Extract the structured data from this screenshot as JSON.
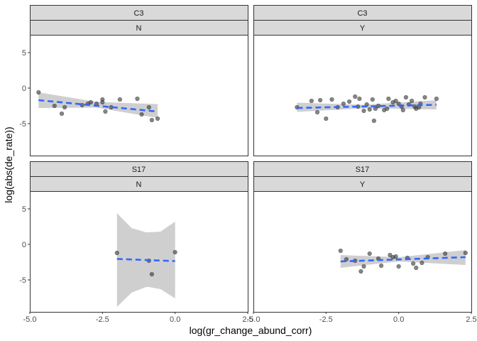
{
  "chart_data": {
    "type": "scatter",
    "xlabel": "log(gr_change_abund_corr)",
    "ylabel": "log(abs(de_rate))",
    "xlim": [
      -5.0,
      2.5
    ],
    "ylim": [
      -9.5,
      7.5
    ],
    "x_ticks": [
      -5.0,
      -2.5,
      0.0,
      2.5
    ],
    "x_tick_labels": [
      "-5.0",
      "-2.5",
      "0.0",
      "2.5"
    ],
    "y_ticks": [
      -5,
      0,
      5
    ],
    "y_tick_labels": [
      "-5",
      "0",
      "5"
    ],
    "grid": false,
    "colors": {
      "points": "#333333",
      "fit": "#3366ff",
      "band": "#bfbfbf",
      "strip": "#d9d9d9",
      "border": "#333333"
    },
    "panels": [
      {
        "row": 0,
        "col": 0,
        "strips": [
          "C3",
          "N"
        ],
        "points": [
          [
            -4.7,
            -0.6
          ],
          [
            -4.15,
            -2.5
          ],
          [
            -3.9,
            -3.6
          ],
          [
            -3.8,
            -2.7
          ],
          [
            -3.2,
            -2.4
          ],
          [
            -3.0,
            -2.2
          ],
          [
            -2.9,
            -2.0
          ],
          [
            -2.7,
            -2.2
          ],
          [
            -2.5,
            -2.0
          ],
          [
            -2.5,
            -1.6
          ],
          [
            -2.4,
            -3.3
          ],
          [
            -2.2,
            -2.7
          ],
          [
            -1.9,
            -1.6
          ],
          [
            -1.3,
            -1.5
          ],
          [
            -1.15,
            -3.7
          ],
          [
            -0.9,
            -2.7
          ],
          [
            -0.8,
            -4.5
          ],
          [
            -0.6,
            -4.3
          ]
        ],
        "fit": {
          "x": [
            -4.7,
            -0.6
          ],
          "y": [
            -1.7,
            -3.3
          ]
        },
        "band": {
          "x": [
            -4.7,
            -2.7,
            -0.6
          ],
          "lower": [
            -2.8,
            -2.75,
            -4.2
          ],
          "upper": [
            -0.6,
            -1.95,
            -2.25
          ]
        }
      },
      {
        "row": 0,
        "col": 1,
        "strips": [
          "C3",
          "Y"
        ],
        "points": [
          [
            -3.5,
            -2.7
          ],
          [
            -3.0,
            -1.8
          ],
          [
            -2.8,
            -3.4
          ],
          [
            -2.7,
            -1.7
          ],
          [
            -2.5,
            -4.3
          ],
          [
            -2.3,
            -1.6
          ],
          [
            -2.1,
            -2.7
          ],
          [
            -1.9,
            -2.2
          ],
          [
            -1.7,
            -1.9
          ],
          [
            -1.5,
            -1.2
          ],
          [
            -1.4,
            -2.6
          ],
          [
            -1.35,
            -1.5
          ],
          [
            -1.2,
            -3.2
          ],
          [
            -1.1,
            -2.3
          ],
          [
            -1.0,
            -3.0
          ],
          [
            -0.9,
            -1.6
          ],
          [
            -0.85,
            -4.6
          ],
          [
            -0.8,
            -2.9
          ],
          [
            -0.7,
            -2.5
          ],
          [
            -0.5,
            -3.1
          ],
          [
            -0.4,
            -2.9
          ],
          [
            -0.35,
            -1.5
          ],
          [
            -0.2,
            -2.0
          ],
          [
            -0.1,
            -1.8
          ],
          [
            0.0,
            -2.2
          ],
          [
            0.1,
            -2.6
          ],
          [
            0.15,
            -3.1
          ],
          [
            0.25,
            -1.3
          ],
          [
            0.35,
            -2.3
          ],
          [
            0.45,
            -1.8
          ],
          [
            0.55,
            -2.6
          ],
          [
            0.6,
            -2.9
          ],
          [
            0.7,
            -2.7
          ],
          [
            0.75,
            -2.2
          ],
          [
            0.9,
            -1.3
          ],
          [
            1.3,
            -1.5
          ]
        ],
        "fit": {
          "x": [
            -3.5,
            1.3
          ],
          "y": [
            -2.8,
            -2.35
          ]
        },
        "band": {
          "x": [
            -3.5,
            -1.2,
            1.3
          ],
          "lower": [
            -3.35,
            -2.85,
            -3.0
          ],
          "upper": [
            -2.05,
            -2.35,
            -1.7
          ]
        }
      },
      {
        "row": 1,
        "col": 0,
        "strips": [
          "S17",
          "N"
        ],
        "points": [
          [
            -2.0,
            -1.2
          ],
          [
            -0.9,
            -2.3
          ],
          [
            -0.8,
            -4.2
          ],
          [
            0.0,
            -1.1
          ]
        ],
        "fit": {
          "x": [
            -2.0,
            0.0
          ],
          "y": [
            -2.05,
            -2.35
          ]
        },
        "band": {
          "x": [
            -2.0,
            -1.5,
            -1.0,
            -0.9,
            -0.5,
            0.0
          ],
          "lower": [
            -8.8,
            -6.8,
            -6.0,
            -6.0,
            -6.3,
            -7.6
          ],
          "upper": [
            4.4,
            2.3,
            1.7,
            1.7,
            1.8,
            3.2
          ]
        }
      },
      {
        "row": 1,
        "col": 1,
        "strips": [
          "S17",
          "Y"
        ],
        "points": [
          [
            -2.0,
            -0.9
          ],
          [
            -1.8,
            -2.1
          ],
          [
            -1.5,
            -2.3
          ],
          [
            -1.3,
            -3.8
          ],
          [
            -1.2,
            -3.1
          ],
          [
            -1.0,
            -1.3
          ],
          [
            -0.7,
            -2.0
          ],
          [
            -0.6,
            -3.0
          ],
          [
            -0.3,
            -1.5
          ],
          [
            -0.2,
            -1.8
          ],
          [
            -0.1,
            -1.7
          ],
          [
            0.0,
            -3.1
          ],
          [
            0.3,
            -1.9
          ],
          [
            0.5,
            -2.7
          ],
          [
            0.6,
            -3.3
          ],
          [
            0.8,
            -2.6
          ],
          [
            1.0,
            -1.8
          ],
          [
            1.6,
            -1.3
          ],
          [
            2.3,
            -1.2
          ]
        ],
        "fit": {
          "x": [
            -2.0,
            2.3
          ],
          "y": [
            -2.4,
            -1.8
          ]
        },
        "band": {
          "x": [
            -2.0,
            0.0,
            2.3
          ],
          "lower": [
            -3.3,
            -2.4,
            -2.9
          ],
          "upper": [
            -1.5,
            -1.8,
            -0.8
          ]
        }
      }
    ]
  }
}
